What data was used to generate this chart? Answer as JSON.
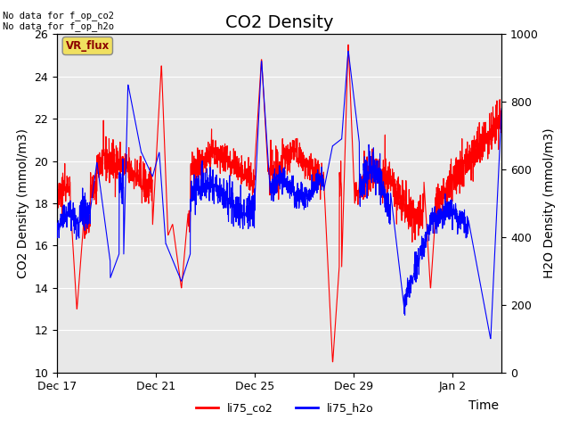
{
  "title": "CO2 Density",
  "xlabel": "Time",
  "ylabel_left": "CO2 Density (mmol/m3)",
  "ylabel_right": "H2O Density (mmol/m3)",
  "annotation_text": "No data for f_op_co2\nNo data for f_op_h2o",
  "box_label": "VR_flux",
  "legend_labels": [
    "li75_co2",
    "li75_h2o"
  ],
  "co2_color": "#ff0000",
  "h2o_color": "#0000ff",
  "background_color": "#e8e8e8",
  "ylim_left": [
    10,
    26
  ],
  "ylim_right": [
    0,
    1000
  ],
  "yticks_left": [
    10,
    12,
    14,
    16,
    18,
    20,
    22,
    24,
    26
  ],
  "yticks_right": [
    0,
    200,
    400,
    600,
    800,
    1000
  ],
  "xtick_labels": [
    "Dec 17",
    "Dec 21",
    "Dec 25",
    "Dec 29",
    "Jan 2"
  ],
  "xtick_positions": [
    0,
    4,
    8,
    12,
    16
  ],
  "xlim": [
    0,
    18
  ],
  "title_fontsize": 14,
  "label_fontsize": 10,
  "tick_fontsize": 9
}
